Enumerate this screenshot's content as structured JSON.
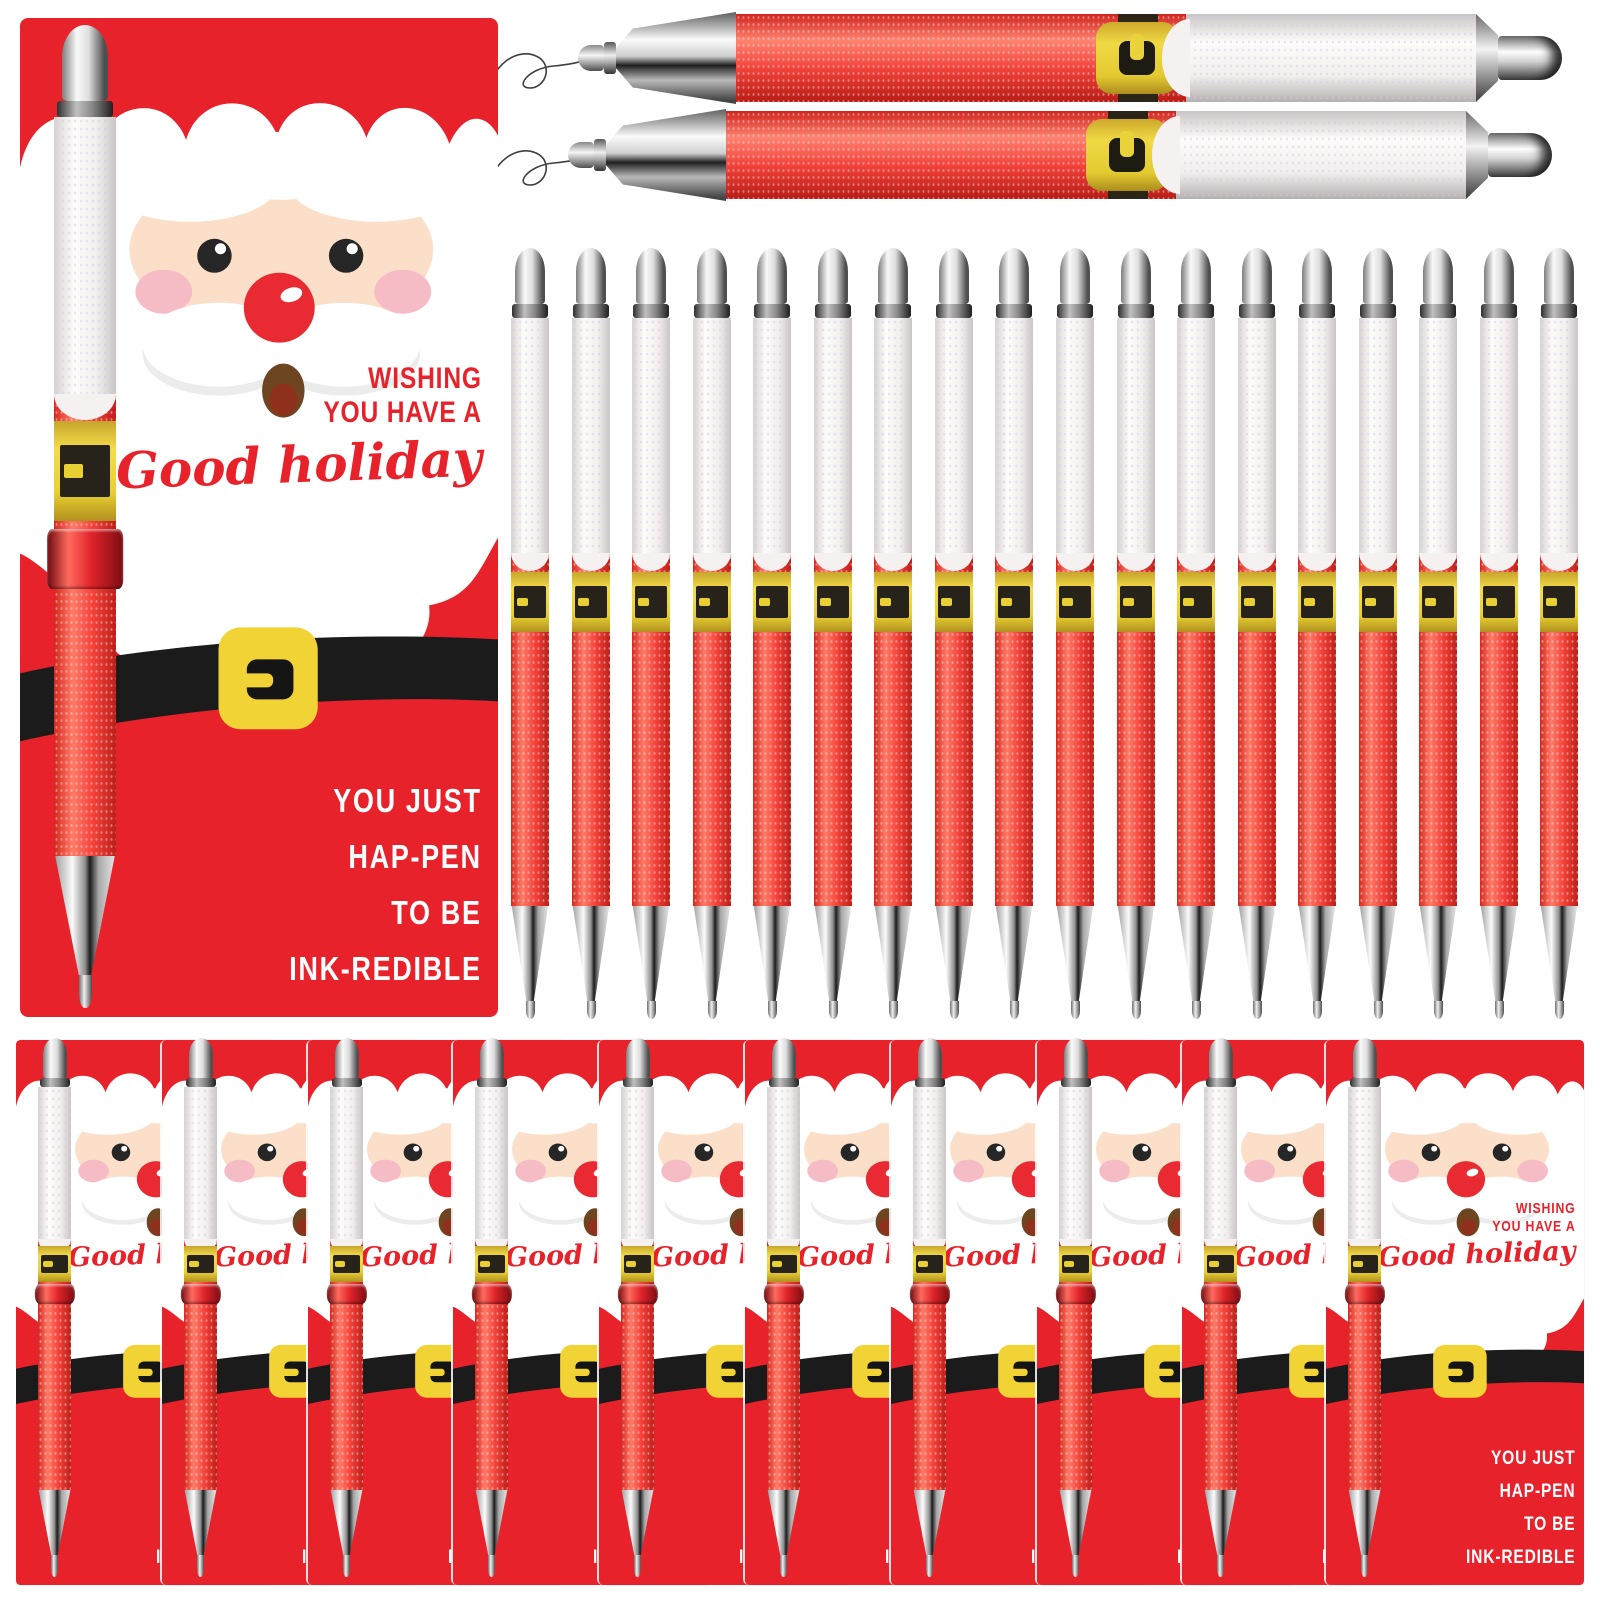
{
  "scene": {
    "description_counts": {
      "large_cards": 1,
      "horizontal_pens": 2,
      "row_pens": 18,
      "bottom_cards": 10
    },
    "card": {
      "wishing_line1": "WISHING",
      "wishing_line2": "YOU HAVE A",
      "script_line": "Good holiday",
      "pun_line1": "YOU JUST",
      "pun_line2": "HAP-PEN",
      "pun_line3": "TO BE",
      "pun_line4": "INK-REDIBLE"
    },
    "colors": {
      "card_red": "#e8222b",
      "belt_black": "#1b1b1b",
      "buckle_yellow": "#f2d335",
      "pen_red": "#f2423a",
      "pen_white": "#f3f1f0",
      "ring_metallic_red": "#d6232b",
      "silver": "#cfcfcf",
      "santa_skin": "#fbdfc9",
      "cheek_pink": "#f6bcc6",
      "text_red": "#e8222b",
      "text_white": "#ffffff",
      "background": "#ffffff"
    }
  }
}
